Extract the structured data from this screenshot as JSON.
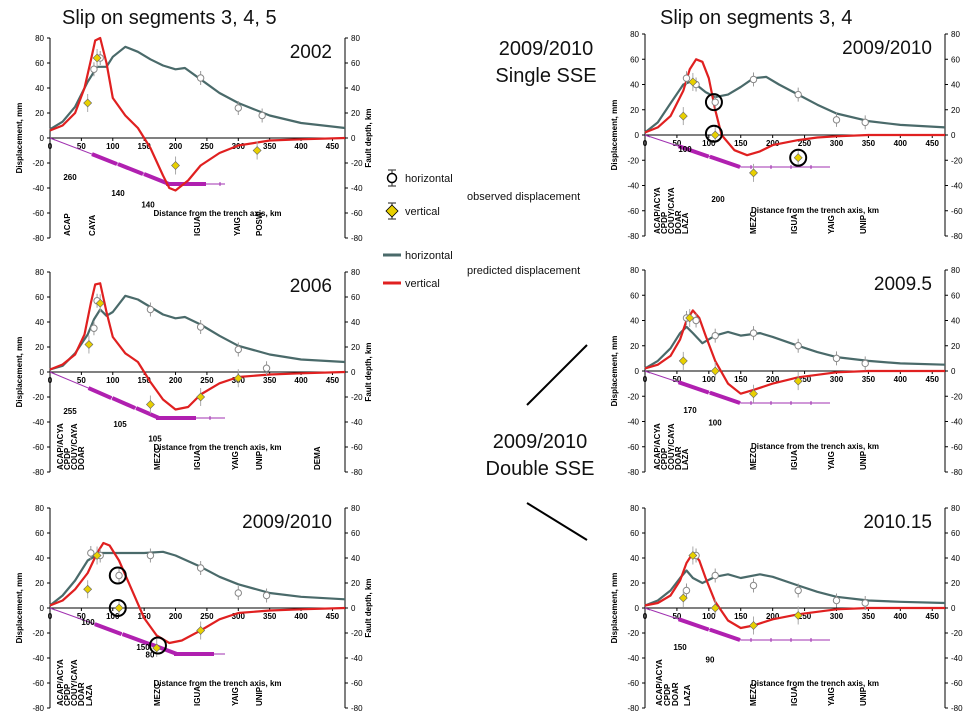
{
  "colors": {
    "horizontal": "#4a6a6a",
    "vertical": "#e02020",
    "fault": "#a030b0",
    "observed_vertical": "#e8d000",
    "circle": "#000000"
  },
  "chart_data": [
    {
      "type": "line",
      "title": "2002",
      "xlabel": "Distance from the trench axis, km",
      "ylabel": "Displacement, mm",
      "y2label": "Fault depth, km",
      "xlim": [
        0,
        470
      ],
      "ylim": [
        -80,
        80
      ],
      "xticks": [
        0,
        50,
        100,
        150,
        200,
        250,
        300,
        350,
        400,
        450
      ],
      "series": [
        {
          "name": "horizontal",
          "x": [
            0,
            20,
            40,
            60,
            75,
            90,
            100,
            120,
            140,
            160,
            180,
            200,
            215,
            240,
            270,
            300,
            350,
            400,
            470
          ],
          "y": [
            7,
            13,
            25,
            45,
            57,
            57,
            65,
            73,
            69,
            63,
            58,
            55,
            56,
            47,
            36,
            28,
            18,
            12,
            8
          ]
        },
        {
          "name": "vertical",
          "x": [
            0,
            20,
            40,
            55,
            65,
            72,
            80,
            90,
            100,
            120,
            140,
            160,
            180,
            190,
            200,
            220,
            240,
            270,
            300,
            350,
            400,
            470
          ],
          "y": [
            6,
            10,
            20,
            40,
            62,
            78,
            80,
            60,
            32,
            18,
            8,
            -8,
            -30,
            -40,
            -42,
            -34,
            -22,
            -12,
            -6,
            -2,
            -1,
            0
          ]
        }
      ],
      "stations": [
        "ACAP",
        "CAYA",
        "IGUA",
        "YAIG",
        "POSW"
      ],
      "fault_segments": [
        "260",
        "140",
        "140"
      ]
    },
    {
      "type": "line",
      "title": "2006",
      "xlabel": "Distance from the trench axis, km",
      "ylabel": "Displacement, mm",
      "y2label": "Fault depth, km",
      "xlim": [
        0,
        470
      ],
      "ylim": [
        -80,
        80
      ],
      "xticks": [
        0,
        50,
        100,
        150,
        200,
        250,
        300,
        350,
        400,
        450
      ],
      "series": [
        {
          "name": "horizontal",
          "x": [
            0,
            20,
            40,
            60,
            70,
            80,
            90,
            100,
            120,
            140,
            160,
            180,
            200,
            215,
            240,
            270,
            300,
            350,
            400,
            470
          ],
          "y": [
            2,
            5,
            15,
            30,
            42,
            50,
            45,
            48,
            61,
            58,
            52,
            46,
            43,
            44,
            38,
            29,
            21,
            14,
            10,
            8
          ]
        },
        {
          "name": "vertical",
          "x": [
            0,
            20,
            40,
            55,
            65,
            72,
            80,
            90,
            100,
            120,
            140,
            160,
            180,
            200,
            220,
            240,
            270,
            300,
            350,
            400,
            470
          ],
          "y": [
            2,
            6,
            14,
            30,
            55,
            70,
            71,
            48,
            28,
            15,
            8,
            -8,
            -22,
            -30,
            -28,
            -18,
            -9,
            -4,
            -2,
            -1,
            0
          ]
        }
      ],
      "stations": [
        "ACAP/ACYA",
        "CPDP",
        "COUY/CAYA",
        "DOAR",
        "MEZC",
        "IGUA",
        "YAIG",
        "UNIP",
        "DEMA"
      ],
      "fault_segments": [
        "255",
        "105",
        "105"
      ]
    },
    {
      "type": "line",
      "title": "2009/2010",
      "xlabel": "Distance from the trench axis, km",
      "ylabel": "Displacement, mm",
      "y2label": "Fault depth, km",
      "xlim": [
        0,
        470
      ],
      "ylim": [
        -80,
        80
      ],
      "xticks": [
        0,
        50,
        100,
        150,
        200,
        250,
        300,
        350,
        400,
        450
      ],
      "series": [
        {
          "name": "horizontal",
          "x": [
            0,
            20,
            40,
            60,
            80,
            100,
            120,
            150,
            180,
            200,
            240,
            270,
            300,
            350,
            400,
            470
          ],
          "y": [
            2,
            10,
            22,
            38,
            44,
            44,
            44,
            44,
            45,
            42,
            33,
            25,
            19,
            12,
            9,
            7
          ]
        },
        {
          "name": "vertical",
          "x": [
            0,
            20,
            40,
            60,
            75,
            85,
            95,
            110,
            130,
            150,
            170,
            190,
            210,
            240,
            270,
            300,
            350,
            400,
            470
          ],
          "y": [
            2,
            6,
            15,
            28,
            44,
            52,
            50,
            38,
            15,
            -8,
            -22,
            -28,
            -26,
            -18,
            -9,
            -4,
            -2,
            -1,
            0
          ]
        }
      ],
      "stations": [
        "ACAP/ACYA",
        "CPDP",
        "COUY/CAYA",
        "DOAR",
        "LAZA",
        "MEZC",
        "IGUA",
        "YAIG",
        "UNIP"
      ],
      "fault_segments": [
        "100",
        "150",
        "80"
      ]
    },
    {
      "type": "line",
      "title": "2009/2010",
      "xlabel": "Distance from the trench axis, km",
      "ylabel": "Displacement, mm",
      "y2label": "Fault depth, km",
      "xlim": [
        0,
        470
      ],
      "ylim": [
        -80,
        80
      ],
      "xticks": [
        0,
        50,
        100,
        150,
        200,
        250,
        300,
        350,
        400,
        450
      ],
      "series": [
        {
          "name": "horizontal",
          "x": [
            0,
            20,
            40,
            60,
            70,
            80,
            95,
            110,
            130,
            150,
            170,
            190,
            210,
            240,
            270,
            300,
            350,
            400,
            470
          ],
          "y": [
            2,
            10,
            25,
            40,
            42,
            40,
            34,
            30,
            32,
            38,
            45,
            46,
            40,
            32,
            24,
            17,
            11,
            8,
            6
          ]
        },
        {
          "name": "vertical",
          "x": [
            0,
            20,
            40,
            60,
            70,
            80,
            90,
            100,
            110,
            120,
            140,
            160,
            180,
            200,
            240,
            270,
            300,
            350,
            400,
            470
          ],
          "y": [
            2,
            6,
            15,
            35,
            52,
            60,
            58,
            45,
            20,
            0,
            -12,
            -16,
            -13,
            -8,
            -4,
            -2,
            -1,
            0,
            0,
            0
          ]
        }
      ],
      "stations": [
        "ACAP/ACYA",
        "CPDP",
        "COUY/CAYA",
        "DOAR",
        "LAZA",
        "MEZC",
        "IGUA",
        "YAIG",
        "UNIP"
      ],
      "fault_segments": [
        "100",
        "200"
      ]
    },
    {
      "type": "line",
      "title": "2009.5",
      "xlabel": "Distance from the trench axis, km",
      "ylabel": "Displacement, mm",
      "y2label": "Fault depth, km",
      "xlim": [
        0,
        470
      ],
      "ylim": [
        -80,
        80
      ],
      "xticks": [
        0,
        50,
        100,
        150,
        200,
        250,
        300,
        350,
        400,
        450
      ],
      "series": [
        {
          "name": "horizontal",
          "x": [
            0,
            20,
            40,
            55,
            65,
            75,
            90,
            110,
            130,
            150,
            180,
            200,
            240,
            270,
            300,
            350,
            400,
            470
          ],
          "y": [
            2,
            8,
            18,
            30,
            35,
            30,
            22,
            28,
            31,
            28,
            30,
            27,
            20,
            15,
            11,
            8,
            6,
            5
          ]
        },
        {
          "name": "vertical",
          "x": [
            0,
            20,
            40,
            55,
            65,
            75,
            85,
            95,
            110,
            130,
            150,
            170,
            200,
            240,
            270,
            300,
            350,
            400,
            470
          ],
          "y": [
            2,
            5,
            12,
            25,
            40,
            48,
            42,
            28,
            8,
            -10,
            -18,
            -15,
            -10,
            -5,
            -3,
            -1,
            0,
            0,
            0
          ]
        }
      ],
      "stations": [
        "ACAP/ACYA",
        "CPDP",
        "COUY/CAYA",
        "DOAR",
        "LAZA",
        "MEZC",
        "IGUA",
        "YAIG",
        "UNIP"
      ],
      "fault_segments": [
        "170",
        "100"
      ]
    },
    {
      "type": "line",
      "title": "2010.15",
      "xlabel": "Distance from the trench axis, km",
      "ylabel": "Displacement, mm",
      "y2label": "Fault depth, km",
      "xlim": [
        0,
        470
      ],
      "ylim": [
        -80,
        80
      ],
      "xticks": [
        0,
        50,
        100,
        150,
        200,
        250,
        300,
        350,
        400,
        450
      ],
      "series": [
        {
          "name": "horizontal",
          "x": [
            0,
            20,
            40,
            55,
            65,
            75,
            90,
            110,
            130,
            150,
            180,
            200,
            240,
            270,
            300,
            350,
            400,
            470
          ],
          "y": [
            2,
            6,
            14,
            24,
            30,
            24,
            20,
            25,
            27,
            24,
            27,
            25,
            18,
            13,
            9,
            6,
            5,
            4
          ]
        },
        {
          "name": "vertical",
          "x": [
            0,
            20,
            40,
            55,
            65,
            75,
            85,
            95,
            110,
            130,
            150,
            170,
            200,
            240,
            270,
            300,
            350,
            400,
            470
          ],
          "y": [
            2,
            4,
            10,
            22,
            36,
            44,
            38,
            24,
            5,
            -10,
            -16,
            -14,
            -9,
            -5,
            -3,
            -1,
            0,
            0,
            0
          ]
        }
      ],
      "stations": [
        "ACAP/ACYA",
        "CPDP",
        "DOAR",
        "LAZA",
        "MEZC",
        "IGUA",
        "YAIG",
        "UNIP"
      ],
      "fault_segments": [
        "150",
        "90"
      ]
    }
  ],
  "headers": {
    "left": "Slip on segments 3, 4, 5",
    "right": "Slip on segments 3, 4"
  },
  "middle": {
    "single_line1": "2009/2010",
    "single_line2": "Single SSE",
    "double_line1": "2009/2010",
    "double_line2": "Double SSE"
  },
  "legend": {
    "horizontal": "horizontal",
    "vertical": "vertical",
    "observed": "observed displacement",
    "predicted": "predicted displacement"
  }
}
